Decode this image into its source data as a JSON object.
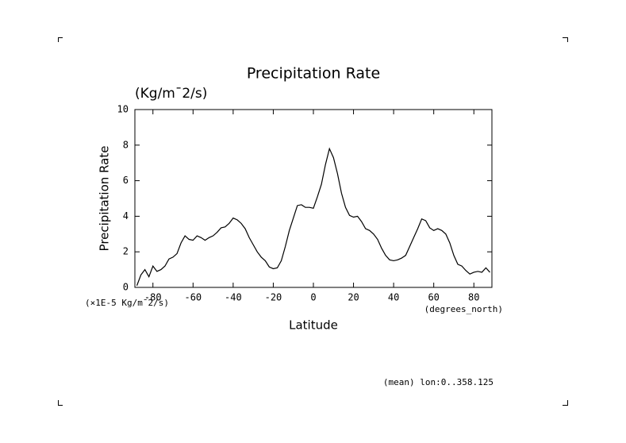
{
  "chart_data": {
    "type": "line",
    "title": "Precipitation Rate",
    "subtitle": "(Kg/m¯2/s)",
    "y_label": "Precipitation Rate",
    "x_label": "Latitude",
    "y_units": "(×1E-5 Kg/m¯2/s)",
    "x_units": "(degrees_north)",
    "annotation": "(mean) lon:0..358.125",
    "color": "#000000",
    "x": [
      -88,
      -86,
      -84,
      -82,
      -80,
      -78,
      -76,
      -74,
      -72,
      -70,
      -68,
      -66,
      -64,
      -62,
      -60,
      -58,
      -56,
      -54,
      -52,
      -50,
      -48,
      -46,
      -44,
      -42,
      -40,
      -38,
      -36,
      -34,
      -32,
      -30,
      -28,
      -26,
      -24,
      -22,
      -20,
      -18,
      -16,
      -14,
      -12,
      -10,
      -8,
      -6,
      -4,
      -2,
      0,
      2,
      4,
      6,
      8,
      10,
      12,
      14,
      16,
      18,
      20,
      22,
      24,
      26,
      28,
      30,
      32,
      34,
      36,
      38,
      40,
      42,
      44,
      46,
      48,
      50,
      52,
      54,
      56,
      58,
      60,
      62,
      64,
      66,
      68,
      70,
      72,
      74,
      76,
      78,
      80,
      82,
      84,
      86,
      88
    ],
    "values": [
      0.1,
      0.7,
      1.0,
      0.6,
      1.2,
      0.9,
      1.0,
      1.2,
      1.6,
      1.7,
      1.9,
      2.5,
      2.9,
      2.7,
      2.65,
      2.9,
      2.8,
      2.65,
      2.8,
      2.9,
      3.1,
      3.35,
      3.4,
      3.6,
      3.9,
      3.8,
      3.6,
      3.3,
      2.8,
      2.4,
      2.0,
      1.7,
      1.5,
      1.15,
      1.05,
      1.1,
      1.5,
      2.3,
      3.2,
      3.9,
      4.6,
      4.65,
      4.5,
      4.5,
      4.45,
      5.1,
      5.8,
      6.9,
      7.8,
      7.3,
      6.4,
      5.3,
      4.5,
      4.05,
      3.95,
      4.0,
      3.7,
      3.3,
      3.2,
      3.0,
      2.7,
      2.2,
      1.8,
      1.55,
      1.5,
      1.55,
      1.65,
      1.8,
      2.3,
      2.8,
      3.3,
      3.85,
      3.75,
      3.35,
      3.2,
      3.3,
      3.2,
      3.0,
      2.5,
      1.8,
      1.3,
      1.2,
      0.95,
      0.75,
      0.85,
      0.9,
      0.85,
      1.1,
      0.85
    ],
    "xlim": [
      -89,
      89
    ],
    "ylim": [
      0,
      10
    ],
    "xticks": [
      -80,
      -60,
      -40,
      -20,
      0,
      20,
      40,
      60,
      80
    ],
    "yticks": [
      0,
      2,
      4,
      6,
      8,
      10
    ]
  }
}
